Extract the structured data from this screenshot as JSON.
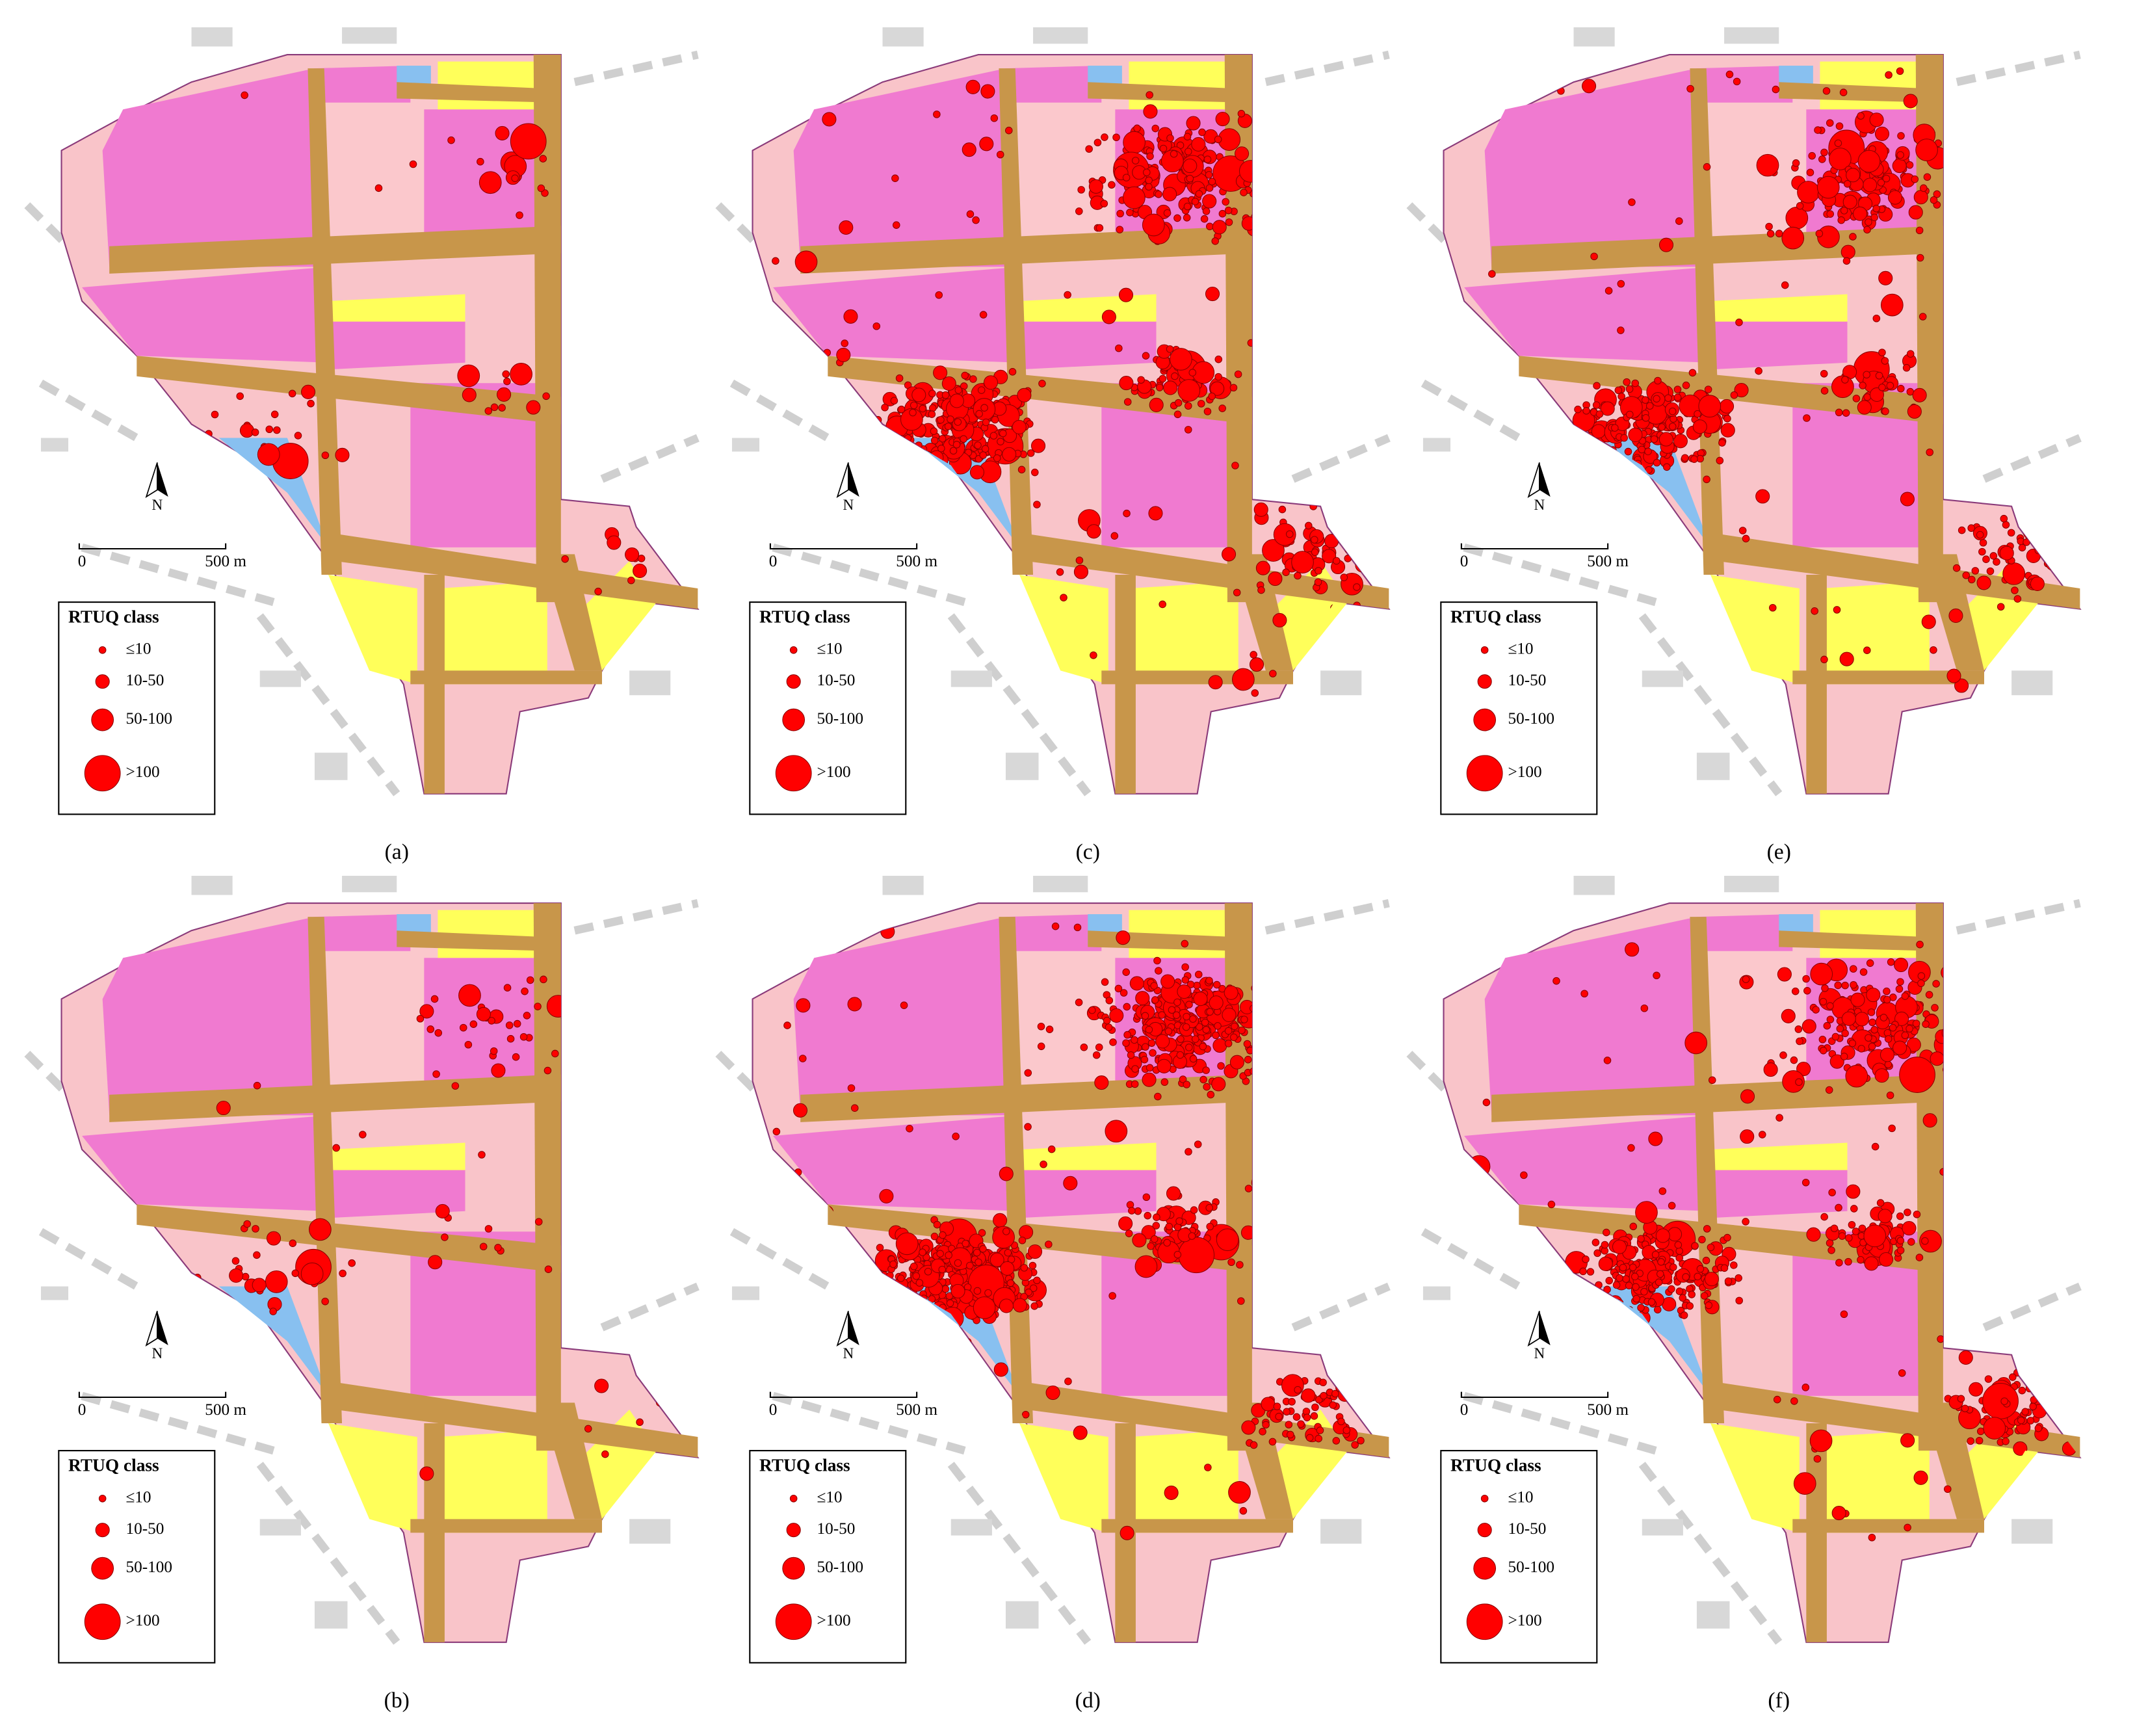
{
  "legend": {
    "title": "RTUQ class",
    "classes": [
      "≤10",
      "10-50",
      "50-100",
      ">100"
    ]
  },
  "scale_bar": {
    "start": "0",
    "end": "500 m"
  },
  "north": "N",
  "panels": [
    {
      "label": "(a)"
    },
    {
      "label": "(c)"
    },
    {
      "label": "(e)"
    },
    {
      "label": "(b)"
    },
    {
      "label": "(d)"
    },
    {
      "label": "(f)"
    }
  ]
}
